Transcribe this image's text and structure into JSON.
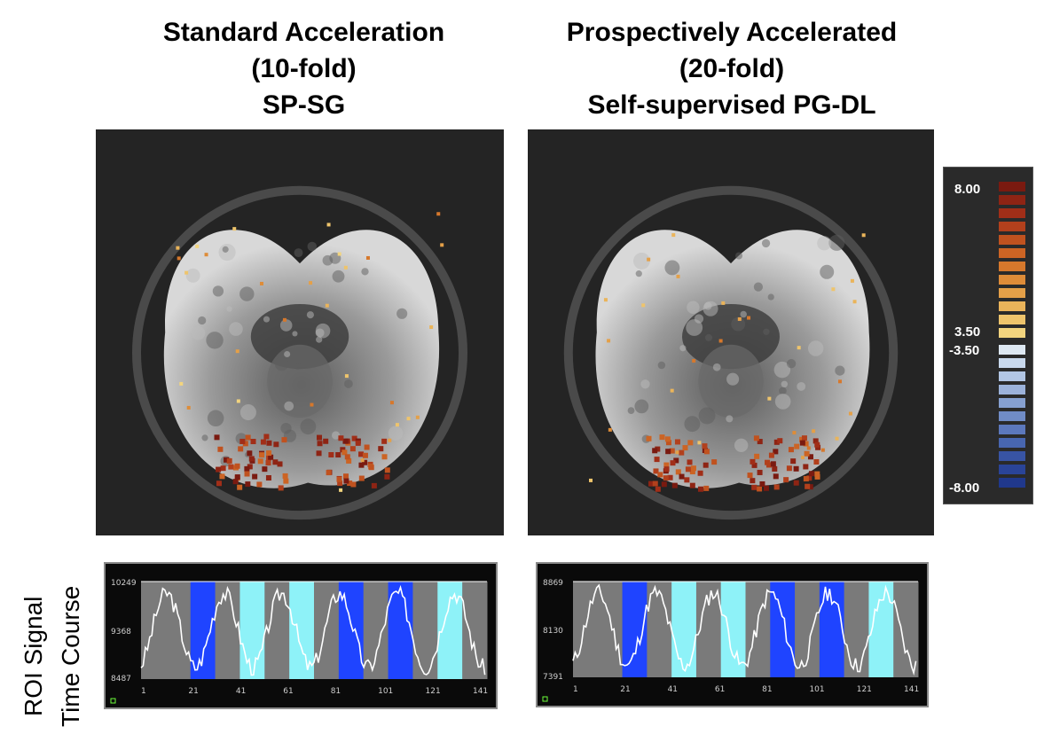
{
  "panels": [
    {
      "title_lines": [
        "Standard Acceleration",
        "(10-fold)",
        "SP-SG"
      ],
      "series_axis": {
        "y_ticks": [
          "10249",
          "9368",
          "8487"
        ],
        "x_ticks": [
          "1",
          "21",
          "41",
          "61",
          "81",
          "101",
          "121",
          "141"
        ]
      }
    },
    {
      "title_lines": [
        "Prospectively Accelerated",
        "(20-fold)",
        "Self-supervised PG-DL"
      ],
      "series_axis": {
        "y_ticks": [
          "8869",
          "8130",
          "7391"
        ],
        "x_ticks": [
          "1",
          "21",
          "41",
          "61",
          "81",
          "101",
          "121",
          "141"
        ]
      }
    }
  ],
  "colorbar": {
    "labels": [
      "8.00",
      "3.50",
      "-3.50",
      "-8.00"
    ],
    "warm_colors": [
      "#7a1a10",
      "#8e2414",
      "#a12e18",
      "#b2401c",
      "#c0521f",
      "#cc6424",
      "#d6782c",
      "#de8c38",
      "#e4a048",
      "#eab45a",
      "#eec46c",
      "#f2d47e"
    ],
    "cool_colors": [
      "#dde8f2",
      "#c8d8ec",
      "#b2c6e4",
      "#9cb2da",
      "#86a0d0",
      "#708cc6",
      "#5c78bc",
      "#4866b0",
      "#3854a4",
      "#2a4498",
      "#20388c"
    ]
  },
  "stimulus_colors": {
    "rest": "#7a7a7a",
    "task_a": "#1f44ff",
    "task_b": "#8ef2f8"
  },
  "side_label_lines": [
    "ROI Signal",
    "Time Course"
  ]
}
